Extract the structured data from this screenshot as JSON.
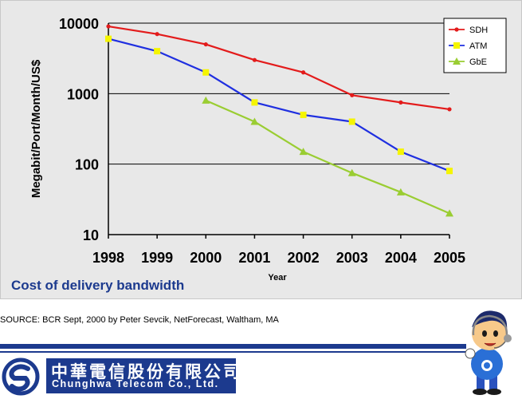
{
  "chart_data": {
    "type": "line",
    "title": "Cost of delivery bandwidth",
    "xlabel": "Year",
    "ylabel": "Megabit/Port/Month/US$",
    "y_scale": "log",
    "ylim": [
      10,
      10000
    ],
    "y_ticks": [
      "10",
      "100",
      "1000",
      "10000"
    ],
    "categories": [
      "1998",
      "1999",
      "2000",
      "2001",
      "2002",
      "2003",
      "2004",
      "2005"
    ],
    "grid": true,
    "legend_position": "top-right",
    "series": [
      {
        "name": "SDH",
        "color": "#e31b1b",
        "marker": "circle",
        "values": [
          9000,
          7000,
          5000,
          3000,
          2000,
          950,
          750,
          600
        ]
      },
      {
        "name": "ATM",
        "color": "#1f2fe0",
        "marker": "square",
        "marker_color": "#f5f500",
        "values": [
          6000,
          4000,
          2000,
          750,
          500,
          400,
          150,
          80
        ]
      },
      {
        "name": "GbE",
        "color": "#9acd32",
        "marker": "triangle",
        "values": [
          null,
          null,
          800,
          400,
          150,
          75,
          40,
          20
        ]
      }
    ]
  },
  "source": "SOURCE: BCR Sept, 2000 by Peter Sevcik, NetForecast, Waltham, MA",
  "footer": {
    "company_cn": "中華電信股份有限公司",
    "company_en": "Chunghwa Telecom Co., Ltd."
  },
  "colors": {
    "brand": "#1c3a8e",
    "title": "#1c3a8e",
    "panel": "#e8e8e8"
  }
}
